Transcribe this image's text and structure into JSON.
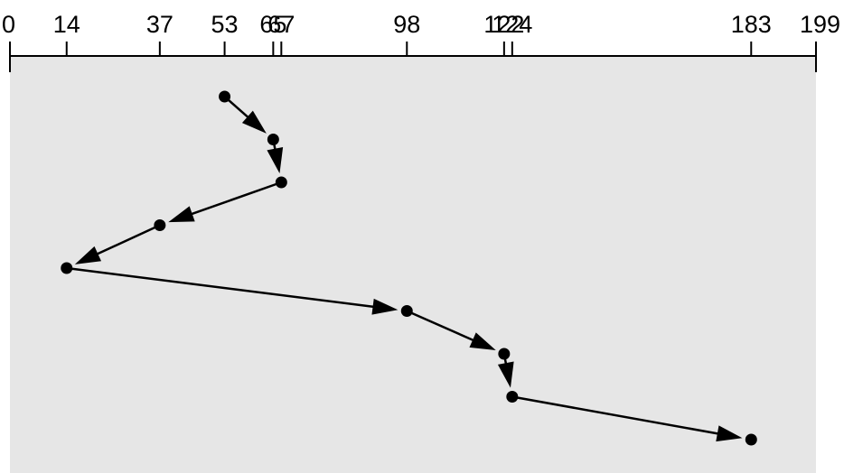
{
  "diagram": {
    "type": "disk-scheduling-path",
    "axis": {
      "min": 0,
      "max": 199,
      "ticks": [
        0,
        14,
        37,
        53,
        65,
        67,
        98,
        122,
        124,
        183,
        199
      ],
      "tick_labels": [
        "0",
        "14",
        "37",
        "53",
        "65",
        "67",
        "98",
        "122",
        "124",
        "183",
        "199"
      ]
    },
    "head_start": 53,
    "service_order": [
      53,
      65,
      67,
      37,
      14,
      98,
      122,
      124,
      183
    ],
    "colors": {
      "background": "#ffffff",
      "panel": "#e6e6e6",
      "ink": "#000000"
    }
  }
}
